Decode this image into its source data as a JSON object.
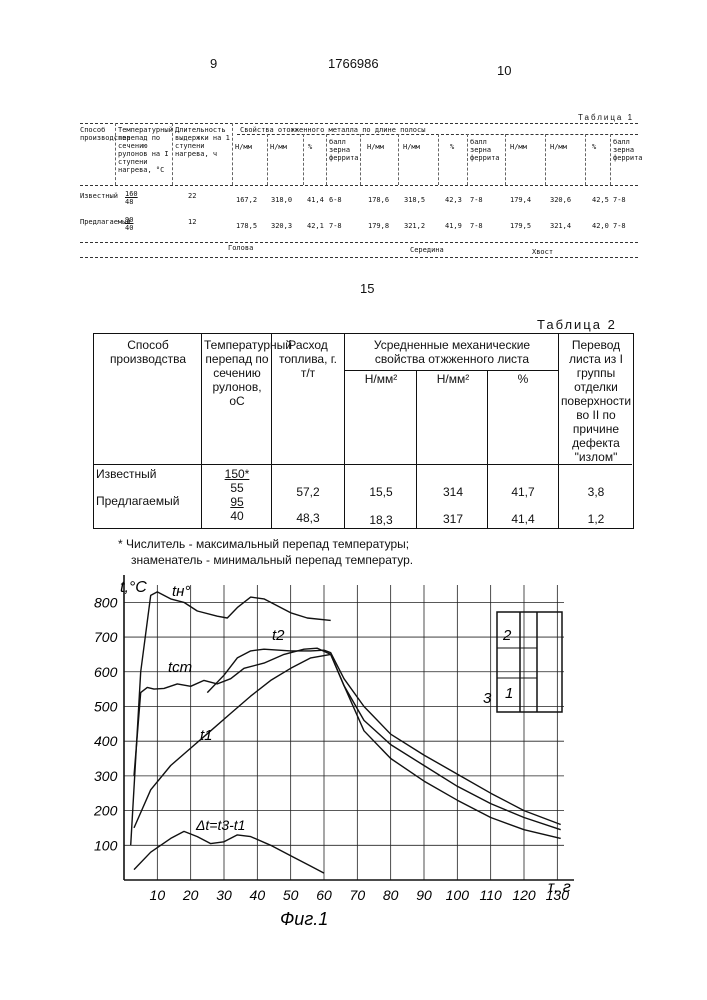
{
  "page": {
    "page_left": "9",
    "patent_number": "1766986",
    "page_right": "10",
    "line_marker": "15"
  },
  "table1": {
    "caption": "Таблица 1",
    "headers": {
      "method": "Способ производства",
      "temp_drop": "Температурный перепад по сечению рулонов на I ступени нагрева, °С",
      "duration": "Длительность выдержки на 1 ступени нагрева, ч",
      "props": "Свойства отожженного металла по длине полосы",
      "n_mm": "Н/мм",
      "pct": "%",
      "grain": "балл зерна феррита"
    },
    "rows": [
      {
        "method": "Известный",
        "temp_num": "160",
        "temp_den": "48",
        "duration": "22",
        "values": [
          "167,2",
          "318,0",
          "41,4",
          "6-8",
          "178,6",
          "318,5",
          "42,3",
          "7-8",
          "179,4",
          "320,6",
          "42,5",
          "7-8"
        ]
      },
      {
        "method": "Предлагаемый",
        "temp_num": "90",
        "temp_den": "40",
        "duration": "12",
        "values": [
          "178,5",
          "320,3",
          "42,1",
          "7-8",
          "179,8",
          "321,2",
          "41,9",
          "7-8",
          "179,5",
          "321,4",
          "42,0",
          "7-8"
        ]
      }
    ],
    "footer": [
      "Голова",
      "Середина",
      "Хвост"
    ]
  },
  "table2": {
    "caption": "Таблица 2",
    "headers": {
      "method": "Способ производства",
      "temp_drop": "Температурный перепад по сечению рулонов, оС",
      "fuel": "Расход топлива, г. т/т",
      "props": "Усредненные механические свойства отжженного листа",
      "col_a": "Н/мм²",
      "col_b": "Н/мм²",
      "col_c": "%",
      "transfer": "Перевод листа из I группы отделки поверхности во II по причине дефекта \"излом\""
    },
    "rows": [
      {
        "method": "Известный",
        "temp_num": "150*",
        "temp_den": "55",
        "fuel": "57,2",
        "a": "15,5",
        "b": "314",
        "c": "41,7",
        "transfer": "3,8"
      },
      {
        "method": "Предлагаемый",
        "temp_num": "95",
        "temp_den": "40",
        "fuel": "48,3",
        "a": "18,3",
        "b": "317",
        "c": "41,4",
        "transfer": "1,2"
      }
    ],
    "note_line1": "* Числитель - максимальный перепад температуры;",
    "note_line2": "знаменатель - минимальный перепад температур."
  },
  "figure": {
    "caption": "Фиг.1",
    "y_axis_label": "t,°C",
    "x_axis_label": "τ, г",
    "inset_labels": [
      "2",
      "3",
      "1"
    ],
    "curve_labels": {
      "furnace": "tн°",
      "stand": "tст",
      "t2": "t2",
      "t1": "t1",
      "dt": "Δt=t3-t1"
    }
  },
  "chart_data": {
    "type": "line",
    "title": "",
    "xlabel": "τ, г",
    "ylabel": "t,°C",
    "xlim": [
      0,
      135
    ],
    "ylim": [
      0,
      850
    ],
    "x_ticks": [
      10,
      20,
      30,
      40,
      50,
      60,
      70,
      80,
      90,
      100,
      110,
      120,
      130
    ],
    "y_ticks": [
      100,
      200,
      300,
      400,
      500,
      600,
      700,
      800
    ],
    "series": [
      {
        "name": "tн°",
        "points": [
          [
            2,
            100
          ],
          [
            5,
            600
          ],
          [
            8,
            820
          ],
          [
            10,
            830
          ],
          [
            14,
            810
          ],
          [
            18,
            800
          ],
          [
            22,
            775
          ],
          [
            28,
            760
          ],
          [
            31,
            755
          ],
          [
            34,
            785
          ],
          [
            38,
            815
          ],
          [
            42,
            810
          ],
          [
            50,
            770
          ],
          [
            55,
            755
          ],
          [
            62,
            748
          ]
        ]
      },
      {
        "name": "tст",
        "points": [
          [
            3,
            300
          ],
          [
            5,
            540
          ],
          [
            7,
            555
          ],
          [
            9,
            550
          ],
          [
            12,
            552
          ],
          [
            16,
            565
          ],
          [
            20,
            558
          ],
          [
            24,
            575
          ],
          [
            28,
            565
          ],
          [
            32,
            580
          ],
          [
            36,
            610
          ],
          [
            42,
            625
          ],
          [
            48,
            650
          ],
          [
            54,
            665
          ],
          [
            58,
            668
          ],
          [
            62,
            650
          ],
          [
            66,
            560
          ],
          [
            72,
            460
          ],
          [
            80,
            390
          ],
          [
            90,
            330
          ],
          [
            100,
            270
          ],
          [
            110,
            220
          ],
          [
            120,
            180
          ],
          [
            131,
            145
          ]
        ]
      },
      {
        "name": "t2",
        "points": [
          [
            25,
            540
          ],
          [
            30,
            590
          ],
          [
            34,
            640
          ],
          [
            38,
            660
          ],
          [
            42,
            665
          ],
          [
            50,
            660
          ],
          [
            56,
            660
          ],
          [
            60,
            662
          ],
          [
            62,
            655
          ],
          [
            66,
            580
          ],
          [
            72,
            500
          ],
          [
            80,
            420
          ],
          [
            90,
            360
          ],
          [
            100,
            305
          ],
          [
            110,
            250
          ],
          [
            120,
            200
          ],
          [
            131,
            160
          ]
        ]
      },
      {
        "name": "t1",
        "points": [
          [
            3,
            150
          ],
          [
            8,
            260
          ],
          [
            14,
            330
          ],
          [
            20,
            380
          ],
          [
            26,
            430
          ],
          [
            32,
            480
          ],
          [
            38,
            530
          ],
          [
            44,
            575
          ],
          [
            50,
            610
          ],
          [
            56,
            640
          ],
          [
            62,
            650
          ],
          [
            66,
            560
          ],
          [
            72,
            430
          ],
          [
            80,
            350
          ],
          [
            90,
            285
          ],
          [
            100,
            230
          ],
          [
            110,
            180
          ],
          [
            120,
            145
          ],
          [
            131,
            120
          ]
        ]
      },
      {
        "name": "Δt=t3-t1",
        "points": [
          [
            3,
            30
          ],
          [
            8,
            80
          ],
          [
            14,
            120
          ],
          [
            18,
            140
          ],
          [
            22,
            125
          ],
          [
            26,
            105
          ],
          [
            30,
            110
          ],
          [
            34,
            130
          ],
          [
            38,
            125
          ],
          [
            44,
            100
          ],
          [
            50,
            70
          ],
          [
            56,
            40
          ],
          [
            60,
            20
          ]
        ]
      }
    ]
  }
}
